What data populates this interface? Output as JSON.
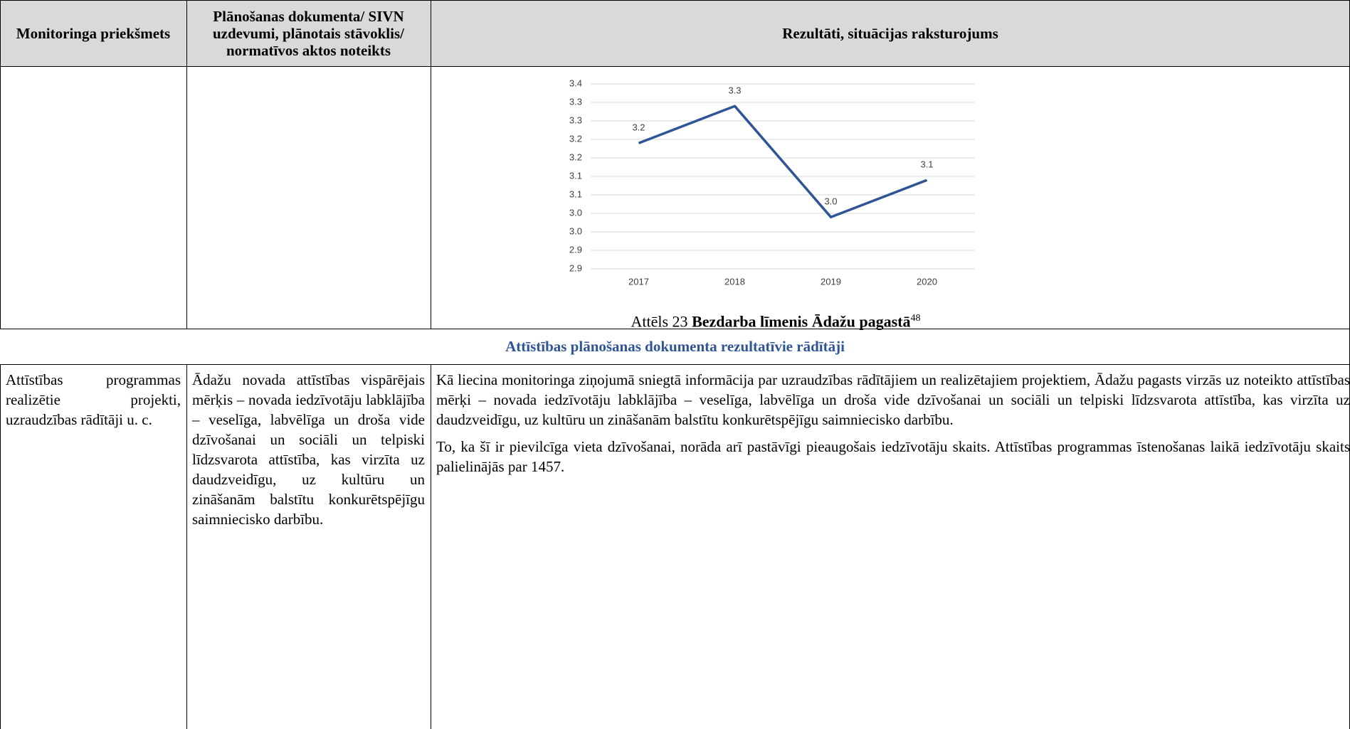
{
  "header": [
    "Monitoringa priekšmets",
    "Plānošanas dokumenta/ SIVN uzdevumi, plānotais stāvoklis/ normatīvos aktos noteikts",
    "Rezultāti, situācijas raksturojums"
  ],
  "chart_data": {
    "type": "line",
    "categories": [
      "2017",
      "2018",
      "2019",
      "2020"
    ],
    "values": [
      3.24,
      3.34,
      3.04,
      3.14
    ],
    "value_labels": [
      "3.2",
      "3.3",
      "3.0",
      "3.1"
    ],
    "color": "#2f5597",
    "ylim": [
      2.9,
      3.4
    ],
    "yticks": [
      3.4,
      {
        "value": 3.35,
        "label": "3.3"
      },
      3.3,
      {
        "value": 3.25,
        "label": "3.2"
      },
      3.2,
      {
        "value": 3.15,
        "label": "3.1"
      },
      3.1,
      {
        "value": 3.05,
        "label": "3.0"
      },
      {
        "value": 3.0,
        "label": "3.0"
      },
      {
        "value": 2.95,
        "label": "2.9"
      },
      2.9
    ],
    "grid": true
  },
  "caption": {
    "prefix": "Attēls 23",
    "title": "Bezdarba līmenis Ādažu pagastā",
    "footnote": "48"
  },
  "section_title": "Attīstības plānošanas dokumenta rezultatīvie rādītāji",
  "row": {
    "subject": "Attīstības programmas realizētie projekti, uzraudzības rādītāji u. c.",
    "task": "Ādažu novada attīstības vispārējais mērķis – novada iedzīvotāju labklājība – veselīga, labvēlīga un droša vide dzīvošanai un sociāli un telpiski līdzsvarota attīstība, kas virzīta uz daudzveidīgu, uz kultūru un zināšanām balstītu konkurētspējīgu saimniecisko darbību.",
    "results": [
      "Kā liecina monitoringa ziņojumā sniegtā informācija par uzraudzības rādītājiem un realizētajiem projektiem, Ādažu pagasts virzās uz noteikto attīstības mērķi – novada iedzīvotāju labklājība – veselīga, labvēlīga un droša vide dzīvošanai un sociāli un telpiski līdzsvarota attīstība, kas virzīta uz daudzveidīgu, uz kultūru un zināšanām balstītu konkurētspējīgu saimniecisko darbību.",
      "To, ka šī ir pievilcīga vieta dzīvošanai, norāda arī pastāvīgi pieaugošais iedzīvotāju skaits. Attīstības programmas īstenošanas laikā iedzīvotāju skaits palielinājās par 1457."
    ]
  }
}
